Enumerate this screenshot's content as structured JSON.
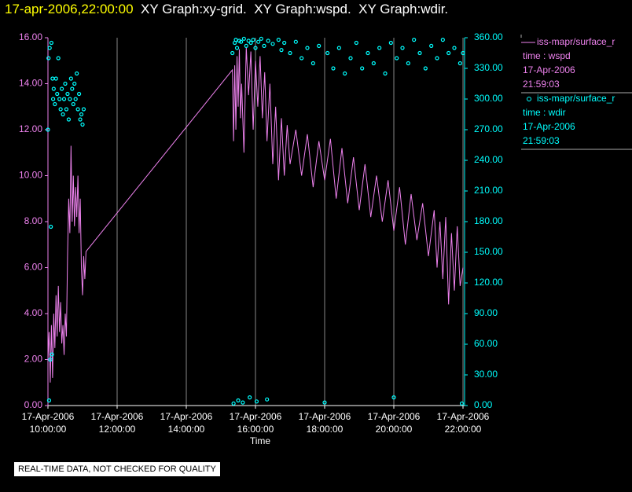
{
  "chart_data": {
    "type": "line",
    "title_time": "17-apr-2006,22:00:00",
    "title": "  XY Graph:xy-grid.  XY Graph:wspd.  XY Graph:wdir.",
    "x_label": "Time",
    "note": "REAL-TIME DATA, NOT CHECKED FOR QUALITY",
    "grid": true,
    "xlim": [
      "17-Apr-2006 10:00:00",
      "17-Apr-2006 22:02:43"
    ],
    "xticks": [
      "17-Apr-2006 10:00:00",
      "17-Apr-2006 12:00:00",
      "17-Apr-2006 14:00:00",
      "17-Apr-2006 16:00:00",
      "17-Apr-2006 18:00:00",
      "17-Apr-2006 20:00:00",
      "17-Apr-2006 22:00:00"
    ],
    "ylim": [
      0,
      16
    ],
    "yticks": [
      {
        "value": 0,
        "label": "0.00"
      },
      {
        "value": 2,
        "label": "2.00"
      },
      {
        "value": 4,
        "label": "4.00"
      },
      {
        "value": 6,
        "label": "6.00"
      },
      {
        "value": 8,
        "label": "8.00"
      },
      {
        "value": 10,
        "label": "10.00"
      },
      {
        "value": 12,
        "label": "12.00"
      },
      {
        "value": 14,
        "label": "14.00"
      },
      {
        "value": 16,
        "label": "16.00"
      }
    ],
    "y2lim": [
      0,
      360
    ],
    "y2ticks": [
      {
        "value": 0,
        "label": "0.00"
      },
      {
        "value": 30,
        "label": "30.00"
      },
      {
        "value": 60,
        "label": "60.00"
      },
      {
        "value": 90,
        "label": "90.00"
      },
      {
        "value": 120,
        "label": "120.00"
      },
      {
        "value": 150,
        "label": "150.00"
      },
      {
        "value": 180,
        "label": "180.00"
      },
      {
        "value": 210,
        "label": "210.00"
      },
      {
        "value": 240,
        "label": "240.00"
      },
      {
        "value": 270,
        "label": "270.00"
      },
      {
        "value": 300,
        "label": "300.00"
      },
      {
        "value": 330,
        "label": "330.00"
      },
      {
        "value": 360,
        "label": "360.00"
      }
    ],
    "series": [
      {
        "name": "iss-mapr/surface_r",
        "legend_info": [
          "time : wspd",
          "17-Apr-2006",
          "21:59:03"
        ],
        "color": "#ee82ee",
        "marker": "line",
        "x": [
          "17-Apr-2006 10:00:00",
          "17-Apr-2006 10:02:00",
          "17-Apr-2006 10:04:00",
          "17-Apr-2006 10:06:00",
          "17-Apr-2006 10:08:00",
          "17-Apr-2006 10:10:00",
          "17-Apr-2006 10:12:00",
          "17-Apr-2006 10:14:00",
          "17-Apr-2006 10:16:00",
          "17-Apr-2006 10:18:00",
          "17-Apr-2006 10:20:00",
          "17-Apr-2006 10:22:00",
          "17-Apr-2006 10:24:00",
          "17-Apr-2006 10:26:00",
          "17-Apr-2006 10:28:00",
          "17-Apr-2006 10:30:00",
          "17-Apr-2006 10:32:00",
          "17-Apr-2006 10:34:00",
          "17-Apr-2006 10:36:00",
          "17-Apr-2006 10:38:00",
          "17-Apr-2006 10:40:00",
          "17-Apr-2006 10:42:00",
          "17-Apr-2006 10:44:00",
          "17-Apr-2006 10:46:00",
          "17-Apr-2006 10:48:00",
          "17-Apr-2006 10:50:00",
          "17-Apr-2006 10:52:00",
          "17-Apr-2006 10:54:00",
          "17-Apr-2006 10:56:00",
          "17-Apr-2006 10:58:00",
          "17-Apr-2006 11:00:00",
          "17-Apr-2006 11:02:00",
          "17-Apr-2006 11:04:00",
          "17-Apr-2006 11:06:00",
          "17-Apr-2006 15:20:00",
          "17-Apr-2006 15:22:00",
          "17-Apr-2006 15:24:00",
          "17-Apr-2006 15:26:00",
          "17-Apr-2006 15:28:00",
          "17-Apr-2006 15:30:00",
          "17-Apr-2006 15:32:00",
          "17-Apr-2006 15:34:00",
          "17-Apr-2006 15:36:00",
          "17-Apr-2006 15:40:00",
          "17-Apr-2006 15:44:00",
          "17-Apr-2006 15:48:00",
          "17-Apr-2006 15:52:00",
          "17-Apr-2006 15:56:00",
          "17-Apr-2006 16:00:00",
          "17-Apr-2006 16:04:00",
          "17-Apr-2006 16:08:00",
          "17-Apr-2006 16:12:00",
          "17-Apr-2006 16:16:00",
          "17-Apr-2006 16:20:00",
          "17-Apr-2006 16:25:00",
          "17-Apr-2006 16:30:00",
          "17-Apr-2006 16:35:00",
          "17-Apr-2006 16:40:00",
          "17-Apr-2006 16:45:00",
          "17-Apr-2006 16:50:00",
          "17-Apr-2006 16:55:00",
          "17-Apr-2006 17:00:00",
          "17-Apr-2006 17:10:00",
          "17-Apr-2006 17:20:00",
          "17-Apr-2006 17:30:00",
          "17-Apr-2006 17:40:00",
          "17-Apr-2006 17:50:00",
          "17-Apr-2006 18:00:00",
          "17-Apr-2006 18:10:00",
          "17-Apr-2006 18:20:00",
          "17-Apr-2006 18:30:00",
          "17-Apr-2006 18:40:00",
          "17-Apr-2006 18:50:00",
          "17-Apr-2006 19:00:00",
          "17-Apr-2006 19:10:00",
          "17-Apr-2006 19:20:00",
          "17-Apr-2006 19:30:00",
          "17-Apr-2006 19:40:00",
          "17-Apr-2006 19:50:00",
          "17-Apr-2006 20:00:00",
          "17-Apr-2006 20:10:00",
          "17-Apr-2006 20:20:00",
          "17-Apr-2006 20:30:00",
          "17-Apr-2006 20:40:00",
          "17-Apr-2006 20:50:00",
          "17-Apr-2006 21:00:00",
          "17-Apr-2006 21:10:00",
          "17-Apr-2006 21:15:00",
          "17-Apr-2006 21:20:00",
          "17-Apr-2006 21:25:00",
          "17-Apr-2006 21:30:00",
          "17-Apr-2006 21:35:00",
          "17-Apr-2006 21:40:00",
          "17-Apr-2006 21:45:00",
          "17-Apr-2006 21:50:00",
          "17-Apr-2006 21:55:00",
          "17-Apr-2006 22:00:00"
        ],
        "values": [
          2.0,
          3.2,
          1.0,
          3.5,
          1.2,
          4.0,
          2.5,
          4.8,
          3.0,
          5.2,
          3.2,
          4.5,
          2.7,
          3.5,
          2.2,
          4.0,
          3.0,
          6.5,
          9.0,
          7.5,
          11.3,
          8.0,
          10.0,
          7.8,
          9.5,
          8.2,
          10.0,
          7.5,
          9.0,
          6.0,
          4.8,
          6.5,
          5.5,
          6.7,
          14.6,
          11.5,
          14.8,
          12.0,
          15.2,
          13.0,
          15.5,
          12.5,
          14.0,
          11.0,
          15.6,
          13.5,
          15.4,
          12.0,
          15.0,
          13.0,
          15.2,
          12.5,
          14.5,
          11.5,
          14.0,
          10.5,
          13.0,
          9.8,
          12.5,
          10.0,
          12.2,
          10.5,
          12.0,
          10.0,
          11.8,
          9.5,
          11.5,
          9.8,
          11.6,
          9.0,
          11.2,
          8.8,
          10.8,
          8.5,
          10.5,
          8.2,
          10.0,
          8.0,
          9.8,
          7.6,
          9.5,
          7.0,
          9.2,
          7.2,
          8.8,
          6.5,
          8.5,
          6.0,
          8.0,
          5.5,
          8.2,
          4.4,
          7.5,
          5.0,
          7.8,
          5.2,
          6.0
        ]
      },
      {
        "name": "iss-mapr/surface_r",
        "legend_info": [
          "time : wdir",
          "17-Apr-2006",
          "21:59:03"
        ],
        "color": "#00ffff",
        "marker": "circle",
        "axis": "y2",
        "x": [
          "17-Apr-2006 10:00:00",
          "17-Apr-2006 10:01:00",
          "17-Apr-2006 10:02:00",
          "17-Apr-2006 10:03:00",
          "17-Apr-2006 10:04:00",
          "17-Apr-2006 10:05:00",
          "17-Apr-2006 10:06:00",
          "17-Apr-2006 10:07:00",
          "17-Apr-2006 10:08:00",
          "17-Apr-2006 10:09:00",
          "17-Apr-2006 10:10:00",
          "17-Apr-2006 10:12:00",
          "17-Apr-2006 10:14:00",
          "17-Apr-2006 10:16:00",
          "17-Apr-2006 10:18:00",
          "17-Apr-2006 10:20:00",
          "17-Apr-2006 10:22:00",
          "17-Apr-2006 10:24:00",
          "17-Apr-2006 10:26:00",
          "17-Apr-2006 10:28:00",
          "17-Apr-2006 10:30:00",
          "17-Apr-2006 10:32:00",
          "17-Apr-2006 10:34:00",
          "17-Apr-2006 10:36:00",
          "17-Apr-2006 10:38:00",
          "17-Apr-2006 10:40:00",
          "17-Apr-2006 10:42:00",
          "17-Apr-2006 10:44:00",
          "17-Apr-2006 10:46:00",
          "17-Apr-2006 10:48:00",
          "17-Apr-2006 10:50:00",
          "17-Apr-2006 10:52:00",
          "17-Apr-2006 10:54:00",
          "17-Apr-2006 10:56:00",
          "17-Apr-2006 10:58:00",
          "17-Apr-2006 11:00:00",
          "17-Apr-2006 11:02:00",
          "17-Apr-2006 15:20:00",
          "17-Apr-2006 15:22:00",
          "17-Apr-2006 15:24:00",
          "17-Apr-2006 15:26:00",
          "17-Apr-2006 15:28:00",
          "17-Apr-2006 15:30:00",
          "17-Apr-2006 15:32:00",
          "17-Apr-2006 15:35:00",
          "17-Apr-2006 15:38:00",
          "17-Apr-2006 15:40:00",
          "17-Apr-2006 15:44:00",
          "17-Apr-2006 15:48:00",
          "17-Apr-2006 15:50:00",
          "17-Apr-2006 15:52:00",
          "17-Apr-2006 15:56:00",
          "17-Apr-2006 16:00:00",
          "17-Apr-2006 16:02:00",
          "17-Apr-2006 16:05:00",
          "17-Apr-2006 16:10:00",
          "17-Apr-2006 16:15:00",
          "17-Apr-2006 16:20:00",
          "17-Apr-2006 16:22:00",
          "17-Apr-2006 16:30:00",
          "17-Apr-2006 16:40:00",
          "17-Apr-2006 16:45:00",
          "17-Apr-2006 16:50:00",
          "17-Apr-2006 17:00:00",
          "17-Apr-2006 17:10:00",
          "17-Apr-2006 17:20:00",
          "17-Apr-2006 17:30:00",
          "17-Apr-2006 17:40:00",
          "17-Apr-2006 17:50:00",
          "17-Apr-2006 18:00:00",
          "17-Apr-2006 18:05:00",
          "17-Apr-2006 18:15:00",
          "17-Apr-2006 18:25:00",
          "17-Apr-2006 18:35:00",
          "17-Apr-2006 18:45:00",
          "17-Apr-2006 18:55:00",
          "17-Apr-2006 19:05:00",
          "17-Apr-2006 19:15:00",
          "17-Apr-2006 19:25:00",
          "17-Apr-2006 19:35:00",
          "17-Apr-2006 19:45:00",
          "17-Apr-2006 19:55:00",
          "17-Apr-2006 20:00:00",
          "17-Apr-2006 20:05:00",
          "17-Apr-2006 20:15:00",
          "17-Apr-2006 20:25:00",
          "17-Apr-2006 20:35:00",
          "17-Apr-2006 20:45:00",
          "17-Apr-2006 20:55:00",
          "17-Apr-2006 21:05:00",
          "17-Apr-2006 21:15:00",
          "17-Apr-2006 21:25:00",
          "17-Apr-2006 21:35:00",
          "17-Apr-2006 21:45:00",
          "17-Apr-2006 21:55:00",
          "17-Apr-2006 21:58:00",
          "17-Apr-2006 22:00:00"
        ],
        "values": [
          270,
          340,
          5,
          350,
          45,
          175,
          355,
          50,
          320,
          300,
          310,
          295,
          320,
          305,
          340,
          300,
          290,
          310,
          285,
          300,
          315,
          290,
          305,
          280,
          300,
          320,
          310,
          295,
          315,
          300,
          325,
          290,
          305,
          280,
          285,
          275,
          290,
          345,
          2,
          355,
          358,
          350,
          5,
          357,
          356,
          3,
          359,
          352,
          357,
          8,
          355,
          358,
          350,
          4,
          356,
          359,
          352,
          6,
          357,
          354,
          358,
          348,
          355,
          345,
          356,
          340,
          350,
          335,
          352,
          3,
          345,
          330,
          350,
          325,
          340,
          355,
          330,
          345,
          335,
          350,
          325,
          355,
          8,
          340,
          350,
          335,
          358,
          345,
          330,
          352,
          340,
          358,
          345,
          350,
          335,
          2,
          345
        ]
      }
    ]
  }
}
